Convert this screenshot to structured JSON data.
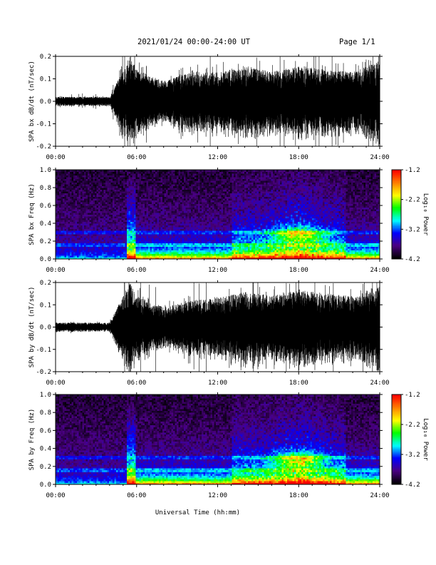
{
  "header": {
    "date_range": "2021/01/24  00:00-24:00 UT",
    "page": "Page 1/1"
  },
  "x_axis": {
    "label": "Universal Time (hh:mm)",
    "ticks": [
      "00:00",
      "06:00",
      "12:00",
      "18:00",
      "24:00"
    ],
    "range_hours": [
      0,
      24
    ]
  },
  "colorbar": {
    "label": "Log₁₀ Power",
    "ticks": [
      "-1.2",
      "-2.2",
      "-3.2",
      "-4.2"
    ],
    "range": [
      -4.2,
      -1.2
    ],
    "colors": [
      "#000000",
      "#4b0082",
      "#0000ff",
      "#00ffff",
      "#00ff00",
      "#ffff00",
      "#ff8000",
      "#ff0000"
    ]
  },
  "chart_data": [
    {
      "type": "line",
      "ylabel": "SPA bx dB/dt (nT/sec)",
      "ylim": [
        -0.2,
        0.2
      ],
      "yticks": [
        "0.2",
        "0.1",
        "0.0",
        "-0.1",
        "-0.2"
      ],
      "x": [
        0,
        2,
        4,
        5.5,
        6,
        8,
        10,
        12,
        14,
        16,
        18,
        20,
        22,
        24
      ],
      "amplitude": [
        0.02,
        0.02,
        0.02,
        0.2,
        0.14,
        0.09,
        0.13,
        0.13,
        0.16,
        0.13,
        0.16,
        0.14,
        0.13,
        0.18
      ]
    },
    {
      "type": "heatmap",
      "ylabel": "SPA bx Freq (Hz)",
      "ylim": [
        0,
        1.0
      ],
      "yticks": [
        "1.0",
        "0.8",
        "0.6",
        "0.4",
        "0.2",
        "0.0"
      ]
    },
    {
      "type": "line",
      "ylabel": "SPA by dB/dt (nT/sec)",
      "ylim": [
        -0.2,
        0.2
      ],
      "yticks": [
        "0.2",
        "0.1",
        "0.0",
        "-0.1",
        "-0.2"
      ],
      "x": [
        0,
        2,
        4,
        5.5,
        6,
        8,
        10,
        12,
        14,
        16,
        18,
        20,
        22,
        24
      ],
      "amplitude": [
        0.02,
        0.02,
        0.02,
        0.2,
        0.14,
        0.09,
        0.12,
        0.13,
        0.16,
        0.14,
        0.17,
        0.15,
        0.14,
        0.19
      ]
    },
    {
      "type": "heatmap",
      "ylabel": "SPA by Freq (Hz)",
      "ylim": [
        0,
        1.0
      ],
      "yticks": [
        "1.0",
        "0.8",
        "0.6",
        "0.4",
        "0.2",
        "0.0"
      ]
    }
  ]
}
